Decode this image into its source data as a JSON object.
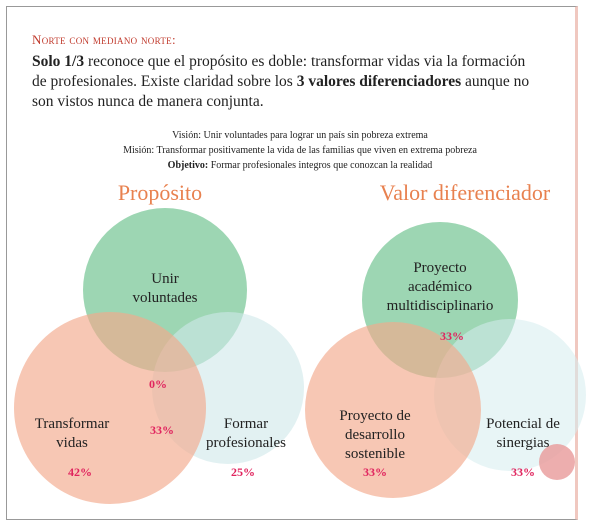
{
  "header": {
    "title": "Norte con mediano norte:",
    "paragraph": [
      {
        "text": "Solo 1/3",
        "bold": true
      },
      {
        "text": " reconoce que el propósito es doble: transformar vidas via la formación de profesionales. Existe claridad sobre los ",
        "bold": false
      },
      {
        "text": "3 valores diferenciadores",
        "bold": true
      },
      {
        "text": " aunque no son vistos nunca de manera conjunta.",
        "bold": false
      }
    ]
  },
  "statements": [
    {
      "label": "Visión:",
      "text": " Unir voluntades para lograr un país sin pobreza extrema",
      "bold": false
    },
    {
      "label": "Misión:",
      "text": " Transformar positivamente la vida de las familias que viven en extrema pobreza",
      "bold": false
    },
    {
      "label": "Objetivo:",
      "text": " Formar profesionales integros que conozcan la realidad",
      "bold": true
    }
  ],
  "diagrams": [
    {
      "title": "Propósito",
      "labels": [
        {
          "lines": [
            "Unir",
            "voluntades"
          ]
        },
        {
          "lines": [
            "0%"
          ]
        },
        {
          "lines": [
            "Transformar",
            "vidas"
          ]
        },
        {
          "lines": [
            "33%"
          ]
        },
        {
          "lines": [
            "42%"
          ]
        },
        {
          "lines": [
            "Formar",
            "profesionales"
          ]
        },
        {
          "lines": [
            "25%"
          ]
        }
      ]
    },
    {
      "title": "Valor diferenciador",
      "labels": [
        {
          "lines": [
            "Proyecto",
            "académico",
            "multidisciplinario"
          ]
        },
        {
          "lines": [
            "33%"
          ]
        },
        {
          "lines": [
            "Proyecto de",
            "desarrollo",
            "sostenible"
          ]
        },
        {
          "lines": [
            "33%"
          ]
        },
        {
          "lines": [
            "Potencial de",
            "sinergias"
          ]
        },
        {
          "lines": [
            "33%"
          ]
        }
      ]
    }
  ]
}
